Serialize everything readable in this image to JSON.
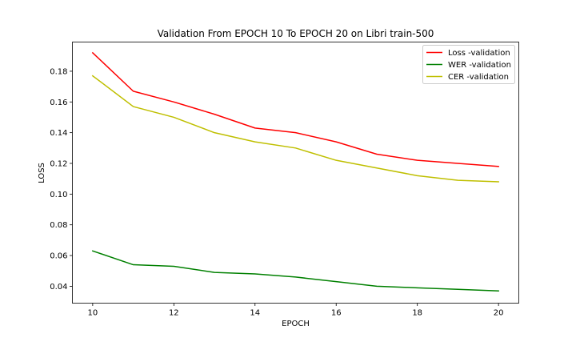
{
  "chart_data": {
    "type": "line",
    "title": "Validation From EPOCH 10 To EPOCH 20 on Libri train-500",
    "xlabel": "EPOCH",
    "ylabel": "LOSS",
    "x": [
      10,
      11,
      12,
      13,
      14,
      15,
      16,
      17,
      18,
      19,
      20
    ],
    "xlim": [
      9.5,
      20.5
    ],
    "ylim": [
      0.029,
      0.199
    ],
    "xticks": [
      10,
      12,
      14,
      16,
      18,
      20
    ],
    "yticks": [
      0.04,
      0.06,
      0.08,
      0.1,
      0.12,
      0.14,
      0.16,
      0.18
    ],
    "ytick_labels": [
      "0.04",
      "0.06",
      "0.08",
      "0.10",
      "0.12",
      "0.14",
      "0.16",
      "0.18"
    ],
    "grid": false,
    "legend_position": "upper right",
    "series": [
      {
        "name": "Loss -validation",
        "color": "#ff0000",
        "values": [
          0.192,
          0.167,
          0.16,
          0.152,
          0.143,
          0.14,
          0.134,
          0.126,
          0.122,
          0.12,
          0.118
        ]
      },
      {
        "name": "WER -validation",
        "color": "#008000",
        "values": [
          0.063,
          0.054,
          0.053,
          0.049,
          0.048,
          0.046,
          0.043,
          0.04,
          0.039,
          0.038,
          0.037
        ]
      },
      {
        "name": "CER -validation",
        "color": "#bfbf00",
        "values": [
          0.177,
          0.157,
          0.15,
          0.14,
          0.134,
          0.13,
          0.122,
          0.117,
          0.112,
          0.109,
          0.108
        ]
      }
    ]
  }
}
